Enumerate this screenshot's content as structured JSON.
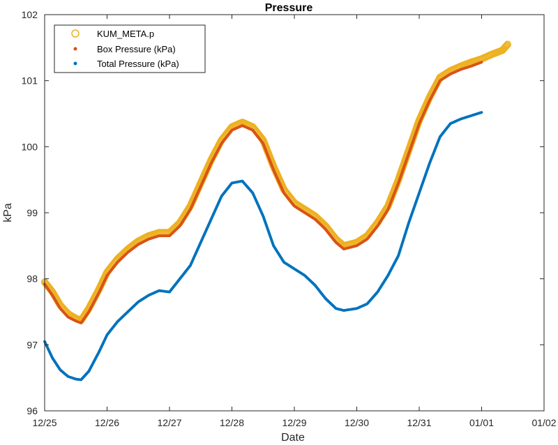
{
  "chart_data": {
    "type": "scatter",
    "title": "Pressure",
    "xlabel": "Date",
    "ylabel": "kPa",
    "xlim": [
      "12/25",
      "01/02"
    ],
    "ylim": [
      96,
      102
    ],
    "x_ticks": [
      "12/25",
      "12/26",
      "12/27",
      "12/28",
      "12/29",
      "12/30",
      "12/31",
      "01/01",
      "01/02"
    ],
    "y_ticks": [
      "96",
      "97",
      "98",
      "99",
      "100",
      "101",
      "102"
    ],
    "grid": false,
    "legend_position": "top-left",
    "series": [
      {
        "name": "KUM_META.p",
        "marker": "open-circle",
        "color": "#EDB120",
        "points": [
          [
            "12/25 00:00",
            97.95
          ],
          [
            "12/25 03:00",
            97.8
          ],
          [
            "12/25 06:00",
            97.6
          ],
          [
            "12/25 09:00",
            97.47
          ],
          [
            "12/25 12:00",
            97.4
          ],
          [
            "12/25 14:00",
            97.37
          ],
          [
            "12/25 17:00",
            97.55
          ],
          [
            "12/25 21:00",
            97.85
          ],
          [
            "12/26 00:00",
            98.1
          ],
          [
            "12/26 04:00",
            98.3
          ],
          [
            "12/26 08:00",
            98.45
          ],
          [
            "12/26 12:00",
            98.57
          ],
          [
            "12/26 16:00",
            98.65
          ],
          [
            "12/26 20:00",
            98.7
          ],
          [
            "12/27 00:00",
            98.7
          ],
          [
            "12/27 04:00",
            98.85
          ],
          [
            "12/27 08:00",
            99.1
          ],
          [
            "12/27 12:00",
            99.45
          ],
          [
            "12/27 16:00",
            99.8
          ],
          [
            "12/27 20:00",
            100.1
          ],
          [
            "12/28 00:00",
            100.3
          ],
          [
            "12/28 04:00",
            100.37
          ],
          [
            "12/28 08:00",
            100.3
          ],
          [
            "12/28 12:00",
            100.1
          ],
          [
            "12/28 16:00",
            99.7
          ],
          [
            "12/28 20:00",
            99.35
          ],
          [
            "12/29 00:00",
            99.15
          ],
          [
            "12/29 04:00",
            99.05
          ],
          [
            "12/29 08:00",
            98.95
          ],
          [
            "12/29 12:00",
            98.8
          ],
          [
            "12/29 16:00",
            98.6
          ],
          [
            "12/29 19:00",
            98.5
          ],
          [
            "12/30 00:00",
            98.55
          ],
          [
            "12/30 04:00",
            98.65
          ],
          [
            "12/30 08:00",
            98.85
          ],
          [
            "12/30 12:00",
            99.1
          ],
          [
            "12/30 16:00",
            99.5
          ],
          [
            "12/30 20:00",
            99.95
          ],
          [
            "12/31 00:00",
            100.4
          ],
          [
            "12/31 04:00",
            100.75
          ],
          [
            "12/31 08:00",
            101.05
          ],
          [
            "12/31 12:00",
            101.15
          ],
          [
            "12/31 16:00",
            101.22
          ],
          [
            "12/31 20:00",
            101.28
          ],
          [
            "01/01 00:00",
            101.33
          ],
          [
            "01/01 04:00",
            101.4
          ],
          [
            "01/01 08:00",
            101.46
          ],
          [
            "01/01 10:00",
            101.55
          ]
        ]
      },
      {
        "name": "Box Pressure (kPa)",
        "marker": "dot",
        "color": "#D95319",
        "points": [
          [
            "12/25 00:00",
            97.92
          ],
          [
            "12/25 03:00",
            97.75
          ],
          [
            "12/25 06:00",
            97.55
          ],
          [
            "12/25 09:00",
            97.42
          ],
          [
            "12/25 12:00",
            97.36
          ],
          [
            "12/25 14:00",
            97.33
          ],
          [
            "12/25 17:00",
            97.5
          ],
          [
            "12/25 21:00",
            97.8
          ],
          [
            "12/26 00:00",
            98.05
          ],
          [
            "12/26 04:00",
            98.25
          ],
          [
            "12/26 08:00",
            98.4
          ],
          [
            "12/26 12:00",
            98.52
          ],
          [
            "12/26 16:00",
            98.6
          ],
          [
            "12/26 20:00",
            98.65
          ],
          [
            "12/27 00:00",
            98.65
          ],
          [
            "12/27 04:00",
            98.8
          ],
          [
            "12/27 08:00",
            99.05
          ],
          [
            "12/27 12:00",
            99.4
          ],
          [
            "12/27 16:00",
            99.75
          ],
          [
            "12/27 20:00",
            100.05
          ],
          [
            "12/28 00:00",
            100.25
          ],
          [
            "12/28 04:00",
            100.32
          ],
          [
            "12/28 08:00",
            100.25
          ],
          [
            "12/28 12:00",
            100.05
          ],
          [
            "12/28 16:00",
            99.65
          ],
          [
            "12/28 20:00",
            99.3
          ],
          [
            "12/29 00:00",
            99.1
          ],
          [
            "12/29 04:00",
            99.0
          ],
          [
            "12/29 08:00",
            98.9
          ],
          [
            "12/29 12:00",
            98.75
          ],
          [
            "12/29 16:00",
            98.55
          ],
          [
            "12/29 19:00",
            98.45
          ],
          [
            "12/30 00:00",
            98.5
          ],
          [
            "12/30 04:00",
            98.6
          ],
          [
            "12/30 08:00",
            98.8
          ],
          [
            "12/30 12:00",
            99.05
          ],
          [
            "12/30 16:00",
            99.45
          ],
          [
            "12/30 20:00",
            99.9
          ],
          [
            "12/31 00:00",
            100.35
          ],
          [
            "12/31 04:00",
            100.7
          ],
          [
            "12/31 08:00",
            101.0
          ],
          [
            "12/31 12:00",
            101.1
          ],
          [
            "12/31 16:00",
            101.17
          ],
          [
            "12/31 20:00",
            101.22
          ],
          [
            "01/01 00:00",
            101.28
          ]
        ]
      },
      {
        "name": "Total Pressure (kPa)",
        "marker": "dot",
        "color": "#0072BD",
        "points": [
          [
            "12/25 00:00",
            97.05
          ],
          [
            "12/25 03:00",
            96.8
          ],
          [
            "12/25 06:00",
            96.62
          ],
          [
            "12/25 09:00",
            96.52
          ],
          [
            "12/25 12:00",
            96.48
          ],
          [
            "12/25 14:00",
            96.47
          ],
          [
            "12/25 17:00",
            96.6
          ],
          [
            "12/25 21:00",
            96.9
          ],
          [
            "12/26 00:00",
            97.15
          ],
          [
            "12/26 04:00",
            97.35
          ],
          [
            "12/26 08:00",
            97.5
          ],
          [
            "12/26 12:00",
            97.65
          ],
          [
            "12/26 16:00",
            97.75
          ],
          [
            "12/26 20:00",
            97.82
          ],
          [
            "12/27 00:00",
            97.8
          ],
          [
            "12/27 04:00",
            98.0
          ],
          [
            "12/27 08:00",
            98.2
          ],
          [
            "12/27 12:00",
            98.55
          ],
          [
            "12/27 16:00",
            98.9
          ],
          [
            "12/27 20:00",
            99.25
          ],
          [
            "12/28 00:00",
            99.45
          ],
          [
            "12/28 04:00",
            99.48
          ],
          [
            "12/28 08:00",
            99.3
          ],
          [
            "12/28 12:00",
            98.95
          ],
          [
            "12/28 16:00",
            98.5
          ],
          [
            "12/28 20:00",
            98.25
          ],
          [
            "12/29 00:00",
            98.15
          ],
          [
            "12/29 04:00",
            98.05
          ],
          [
            "12/29 08:00",
            97.9
          ],
          [
            "12/29 12:00",
            97.7
          ],
          [
            "12/29 16:00",
            97.55
          ],
          [
            "12/29 19:00",
            97.52
          ],
          [
            "12/30 00:00",
            97.55
          ],
          [
            "12/30 04:00",
            97.62
          ],
          [
            "12/30 08:00",
            97.8
          ],
          [
            "12/30 12:00",
            98.05
          ],
          [
            "12/30 16:00",
            98.35
          ],
          [
            "12/30 20:00",
            98.85
          ],
          [
            "12/31 00:00",
            99.3
          ],
          [
            "12/31 04:00",
            99.75
          ],
          [
            "12/31 08:00",
            100.15
          ],
          [
            "12/31 12:00",
            100.35
          ],
          [
            "12/31 16:00",
            100.42
          ],
          [
            "12/31 20:00",
            100.47
          ],
          [
            "01/01 00:00",
            100.52
          ]
        ]
      }
    ]
  }
}
